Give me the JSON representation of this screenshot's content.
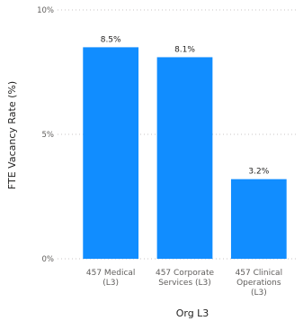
{
  "chart_data": {
    "type": "bar",
    "categories": [
      [
        "457 Medical",
        "(L3)"
      ],
      [
        "457 Corporate",
        "Services (L3)"
      ],
      [
        "457 Clinical",
        "Operations",
        "(L3)"
      ]
    ],
    "values": [
      8.5,
      8.1,
      3.2
    ],
    "data_labels": [
      "8.5%",
      "8.1%",
      "3.2%"
    ],
    "xlabel": "Org L3",
    "ylabel": "FTE Vacancy Rate (%)",
    "ylim": [
      0,
      10
    ],
    "yticks": [
      0,
      5,
      10
    ],
    "ytick_labels": [
      "0%",
      "5%",
      "10%"
    ],
    "grid": true,
    "bar_color": "#118dff"
  }
}
